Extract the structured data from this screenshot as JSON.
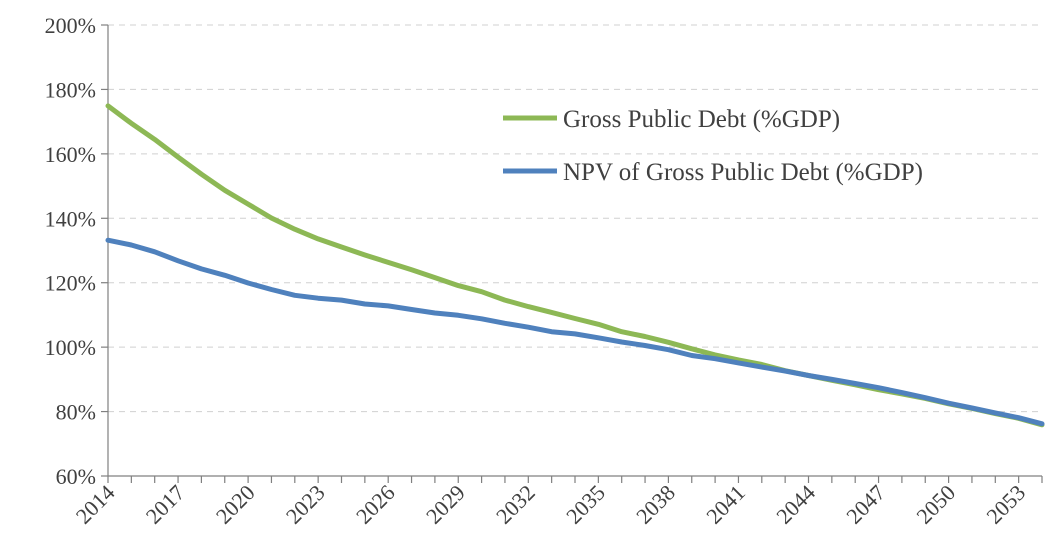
{
  "chart_data": {
    "type": "line",
    "x": [
      2014,
      2015,
      2016,
      2017,
      2018,
      2019,
      2020,
      2021,
      2022,
      2023,
      2024,
      2025,
      2026,
      2027,
      2028,
      2029,
      2030,
      2031,
      2032,
      2033,
      2034,
      2035,
      2036,
      2037,
      2038,
      2039,
      2040,
      2041,
      2042,
      2043,
      2044,
      2045,
      2046,
      2047,
      2048,
      2049,
      2050,
      2051,
      2052,
      2053,
      2054
    ],
    "x_tick_labels": [
      "2014",
      "2017",
      "2020",
      "2023",
      "2026",
      "2029",
      "2032",
      "2035",
      "2038",
      "2041",
      "2044",
      "2047",
      "2050",
      "2053"
    ],
    "x_tick_values": [
      2014,
      2017,
      2020,
      2023,
      2026,
      2029,
      2032,
      2035,
      2038,
      2041,
      2044,
      2047,
      2050,
      2053
    ],
    "y_tick_labels": [
      "60%",
      "80%",
      "100%",
      "120%",
      "140%",
      "160%",
      "180%",
      "200%"
    ],
    "y_tick_values": [
      60,
      80,
      100,
      120,
      140,
      160,
      180,
      200
    ],
    "ylim": [
      60,
      200
    ],
    "xlim": [
      2014,
      2054
    ],
    "grid": true,
    "legend_position": "upper-right",
    "series": [
      {
        "name": "Gross Public Debt (%GDP)",
        "color": "#8db855",
        "values": [
          174.9,
          169.5,
          164.5,
          159.0,
          153.7,
          148.7,
          144.4,
          140.1,
          136.6,
          133.6,
          131.1,
          128.6,
          126.3,
          124.0,
          121.6,
          119.1,
          117.2,
          114.6,
          112.6,
          110.8,
          108.9,
          107.1,
          104.8,
          103.3,
          101.5,
          99.5,
          97.6,
          96.0,
          94.6,
          92.7,
          91.2,
          89.7,
          88.3,
          86.8,
          85.5,
          84.1,
          82.4,
          81.0,
          79.4,
          77.9,
          75.9
        ]
      },
      {
        "name": "NPV of Gross Public Debt (%GDP)",
        "color": "#4f81bd",
        "values": [
          133.2,
          131.7,
          129.6,
          126.8,
          124.3,
          122.3,
          119.9,
          117.9,
          116.1,
          115.2,
          114.6,
          113.4,
          112.8,
          111.7,
          110.6,
          109.9,
          108.8,
          107.4,
          106.2,
          104.8,
          104.1,
          102.9,
          101.6,
          100.5,
          99.2,
          97.4,
          96.4,
          95.1,
          93.8,
          92.6,
          91.2,
          90.0,
          88.7,
          87.4,
          85.9,
          84.3,
          82.6,
          81.1,
          79.6,
          78.1,
          76.2
        ]
      }
    ]
  }
}
